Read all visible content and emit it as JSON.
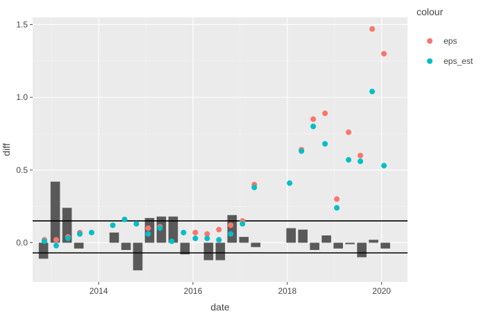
{
  "chart_data": {
    "type": "scatter",
    "title": "",
    "xlabel": "date",
    "ylabel": "diff",
    "legend_title": "colour",
    "legend_position": "right",
    "grid": true,
    "x_ticks": [
      2014,
      2016,
      2018,
      2020
    ],
    "y_ticks": [
      0.0,
      0.5,
      1.0,
      1.5
    ],
    "y_tick_labels": [
      "0.0",
      "0.5",
      "1.0",
      "1.5"
    ],
    "xlim": [
      2012.6,
      2020.55
    ],
    "ylim": [
      -0.27,
      1.55
    ],
    "hlines": [
      0.15,
      -0.07
    ],
    "bars": {
      "color": "#595959",
      "width_years": 0.2,
      "x": [
        2012.83,
        2013.08,
        2013.33,
        2013.58,
        2014.33,
        2014.58,
        2014.83,
        2015.08,
        2015.33,
        2015.58,
        2015.83,
        2016.33,
        2016.58,
        2016.83,
        2017.08,
        2017.33,
        2018.08,
        2018.33,
        2018.58,
        2018.83,
        2019.08,
        2019.33,
        2019.58,
        2019.83,
        2020.08
      ],
      "values": [
        -0.11,
        0.42,
        0.24,
        -0.04,
        0.07,
        -0.05,
        -0.19,
        0.17,
        0.18,
        0.18,
        -0.08,
        -0.12,
        -0.12,
        0.19,
        0.04,
        -0.03,
        0.1,
        0.09,
        -0.05,
        0.05,
        -0.04,
        -0.01,
        -0.1,
        0.02,
        -0.04
      ]
    },
    "series": [
      {
        "name": "eps",
        "color": "#F8766D",
        "x": [
          2012.85,
          2013.1,
          2013.35,
          2013.6,
          2015.05,
          2015.3,
          2016.05,
          2016.3,
          2016.55,
          2016.8,
          2017.05,
          2017.3,
          2018.3,
          2018.55,
          2018.8,
          2019.05,
          2019.3,
          2019.55,
          2019.8,
          2020.05
        ],
        "y": [
          0.02,
          0.02,
          0.04,
          0.07,
          0.1,
          0.11,
          0.07,
          0.06,
          0.09,
          0.12,
          0.15,
          0.4,
          0.64,
          0.85,
          0.89,
          0.3,
          0.76,
          0.6,
          1.47,
          1.3
        ]
      },
      {
        "name": "eps_est",
        "color": "#00BFC4",
        "x": [
          2012.85,
          2013.1,
          2013.35,
          2013.6,
          2013.85,
          2014.3,
          2014.55,
          2014.8,
          2015.05,
          2015.3,
          2015.55,
          2015.8,
          2016.05,
          2016.3,
          2016.55,
          2016.8,
          2017.05,
          2017.3,
          2018.05,
          2018.3,
          2018.55,
          2018.8,
          2019.05,
          2019.3,
          2019.55,
          2019.8,
          2020.05
        ],
        "y": [
          0.01,
          -0.02,
          0.03,
          0.06,
          0.07,
          0.12,
          0.16,
          0.13,
          0.06,
          0.1,
          0.01,
          0.07,
          0.03,
          0.03,
          0.02,
          0.06,
          0.13,
          0.38,
          0.41,
          0.63,
          0.8,
          0.68,
          0.24,
          0.57,
          0.56,
          1.04,
          0.53
        ]
      }
    ]
  }
}
